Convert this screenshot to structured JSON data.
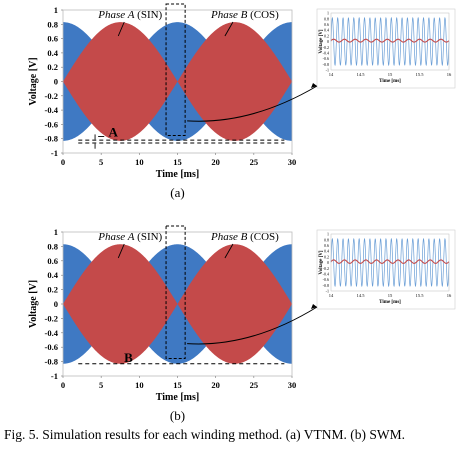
{
  "caption": "Fig. 5.   Simulation results for each winding method. (a) VTNM. (b) SWM.",
  "colors": {
    "carrier": "#3f79c3",
    "envelope": "#c44a4a",
    "inset_carrier": "#6a9ed6",
    "inset_envelope": "#c44a4a"
  },
  "chart_data": [
    {
      "type": "line",
      "panel_label": "(a)",
      "xlabel": "Time [ms]",
      "ylabel": "Voltage [V]",
      "xlim": [
        0,
        30
      ],
      "ylim": [
        -1,
        1
      ],
      "xticks": [
        0,
        5,
        10,
        15,
        20,
        25,
        30
      ],
      "yticks": [
        1,
        0.8,
        0.6,
        0.4,
        0.2,
        0,
        -0.2,
        -0.4,
        -0.6,
        -0.8,
        -1
      ],
      "grid": false,
      "series": [
        {
          "name": "Phase A (SIN)",
          "kind": "envelope",
          "amplitude": 0.83,
          "period_ms": 30,
          "phase": "sin"
        },
        {
          "name": "Phase B (COS)",
          "kind": "envelope",
          "amplitude": 0.83,
          "period_ms": 30,
          "phase": "cos"
        }
      ],
      "annotations": [
        {
          "text": "Phase A (SIN)",
          "x": 7.5,
          "y": 0.95
        },
        {
          "text": "Phase B (COS)",
          "x": 22,
          "y": 0.95
        },
        {
          "text": "A",
          "x": 5,
          "y": -0.8
        }
      ],
      "reference_lines": [
        -0.82,
        -0.86
      ],
      "zoom_window": [
        13.5,
        16
      ]
    },
    {
      "type": "line",
      "panel_label": "(b)",
      "xlabel": "Time [ms]",
      "ylabel": "Voltage [V]",
      "xlim": [
        0,
        30
      ],
      "ylim": [
        -1,
        1
      ],
      "xticks": [
        0,
        5,
        10,
        15,
        20,
        25,
        30
      ],
      "yticks": [
        1,
        0.8,
        0.6,
        0.4,
        0.2,
        0,
        -0.2,
        -0.4,
        -0.6,
        -0.8,
        -1
      ],
      "grid": false,
      "series": [
        {
          "name": "Phase A (SIN)",
          "kind": "envelope",
          "amplitude": 0.83,
          "period_ms": 30,
          "phase": "sin"
        },
        {
          "name": "Phase B (COS)",
          "kind": "envelope",
          "amplitude": 0.83,
          "period_ms": 30,
          "phase": "cos"
        }
      ],
      "annotations": [
        {
          "text": "Phase A (SIN)",
          "x": 7.5,
          "y": 0.95
        },
        {
          "text": "Phase B (COS)",
          "x": 22,
          "y": 0.95
        },
        {
          "text": "B",
          "x": 7,
          "y": -0.75
        }
      ],
      "reference_lines": [
        -0.83
      ],
      "zoom_window": [
        13.5,
        16
      ]
    },
    {
      "type": "line",
      "inset": true,
      "xlabel": "Time [ms]",
      "ylabel": "Voltage [V]",
      "xlim": [
        14,
        16
      ],
      "ylim": [
        -1,
        1
      ],
      "xticks": [
        "14",
        "14.5",
        "15",
        "15.5",
        "16"
      ],
      "yticks": [
        1,
        0.8,
        0.6,
        0.4,
        0.2,
        0,
        -0.2,
        -0.4,
        -0.6,
        -0.8,
        -1
      ],
      "series": [
        {
          "name": "",
          "kind": "carrier",
          "amplitude": 0.83,
          "cycles": 22
        },
        {
          "name": "",
          "kind": "envelope",
          "amplitude": 0.05
        }
      ]
    },
    {
      "type": "line",
      "inset": true,
      "xlabel": "Time [ms]",
      "ylabel": "Voltage [V]",
      "xlim": [
        14,
        16
      ],
      "ylim": [
        -1,
        1
      ],
      "xticks": [
        "14",
        "14.5",
        "15",
        "15.5",
        "16"
      ],
      "yticks": [
        1,
        0.8,
        0.6,
        0.4,
        0.2,
        0,
        -0.2,
        -0.4,
        -0.6,
        -0.8,
        -1
      ],
      "series": [
        {
          "name": "",
          "kind": "carrier",
          "amplitude": 0.83,
          "cycles": 22
        },
        {
          "name": "",
          "kind": "envelope",
          "amplitude": 0.06
        }
      ]
    }
  ]
}
